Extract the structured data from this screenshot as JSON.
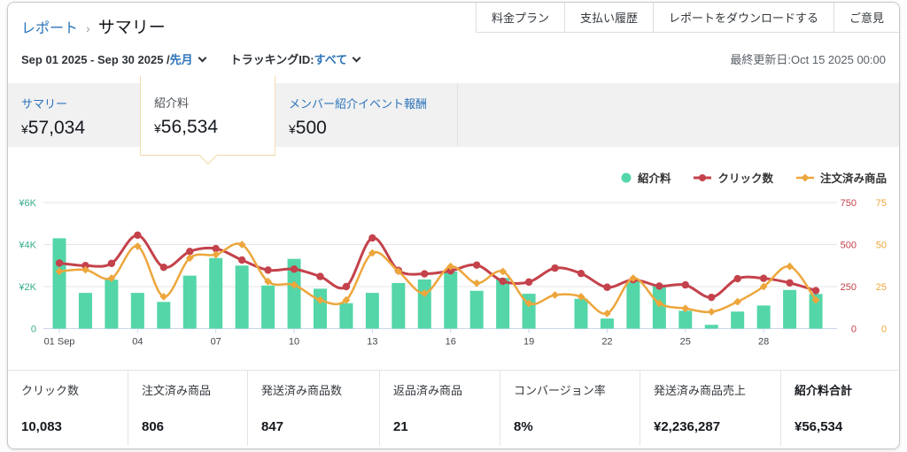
{
  "header": {
    "breadcrumb": {
      "parent": "レポート",
      "separator": "›",
      "current": "サマリー"
    },
    "actions": [
      "料金プラン",
      "支払い履歴",
      "レポートをダウンロードする",
      "ご意見"
    ],
    "date_range": "Sep 01 2025 - Sep 30 2025 /",
    "date_preset": "先月",
    "tracking_label": "トラッキングID:",
    "tracking_value": "すべて",
    "last_updated": "最終更新日:Oct 15 2025 00:00"
  },
  "icons": {
    "date_dropdown": "chevron-down",
    "tracking_dropdown": "chevron-down",
    "selected_tab_pointer": "callout-arrow-down"
  },
  "metric_tabs": [
    {
      "label": "サマリー",
      "currency": "¥",
      "value": "57,034",
      "selected": false
    },
    {
      "label": "紹介料",
      "currency": "¥",
      "value": "56,534",
      "selected": true
    },
    {
      "label": "メンバー紹介イベント報酬",
      "currency": "¥",
      "value": "500",
      "selected": false
    }
  ],
  "chart_data": {
    "type": "bar+line combo",
    "x_days": [
      1,
      2,
      3,
      4,
      5,
      6,
      7,
      8,
      9,
      10,
      11,
      12,
      13,
      14,
      15,
      16,
      17,
      18,
      19,
      20,
      21,
      22,
      23,
      24,
      25,
      26,
      27,
      28,
      29,
      30
    ],
    "x_ticks": [
      {
        "day": 1,
        "label": "01 Sep"
      },
      {
        "day": 4,
        "label": "04"
      },
      {
        "day": 7,
        "label": "07"
      },
      {
        "day": 10,
        "label": "10"
      },
      {
        "day": 13,
        "label": "13"
      },
      {
        "day": 16,
        "label": "16"
      },
      {
        "day": 19,
        "label": "19"
      },
      {
        "day": 22,
        "label": "22"
      },
      {
        "day": 25,
        "label": "25"
      },
      {
        "day": 28,
        "label": "28"
      }
    ],
    "left_axis": {
      "ticks": [
        {
          "v": 6000,
          "label": "¥6K"
        },
        {
          "v": 4000,
          "label": "¥4K"
        },
        {
          "v": 2000,
          "label": "¥2K"
        },
        {
          "v": 0,
          "label": "0"
        }
      ],
      "max": 6000,
      "color": "#35ab8c"
    },
    "right_axis1": {
      "ticks": [
        {
          "v": 750,
          "label": "750"
        },
        {
          "v": 500,
          "label": "500"
        },
        {
          "v": 250,
          "label": "250"
        },
        {
          "v": 0,
          "label": "0"
        }
      ],
      "max": 750,
      "color": "#c4424b"
    },
    "right_axis2": {
      "ticks": [
        {
          "v": 75,
          "label": "75"
        },
        {
          "v": 50,
          "label": "50"
        },
        {
          "v": 25,
          "label": "25"
        },
        {
          "v": 0,
          "label": "0"
        }
      ],
      "max": 75,
      "color": "#eda63c"
    },
    "grid": true,
    "legend_position": "top-right",
    "series": [
      {
        "name": "紹介料",
        "type": "bar",
        "axis": "left",
        "color": "#54d6a8",
        "marker": "circle",
        "values": [
          4300,
          1700,
          2330,
          1700,
          1270,
          2520,
          3360,
          3000,
          2050,
          3320,
          1900,
          1210,
          1700,
          2170,
          2340,
          2720,
          1800,
          2410,
          1660,
          0,
          1420,
          480,
          2300,
          2050,
          850,
          180,
          810,
          1100,
          1840,
          1650
        ]
      },
      {
        "name": "クリック数",
        "type": "line",
        "axis": "right1",
        "color": "#c4424b",
        "marker": "circle",
        "values": [
          390,
          375,
          388,
          556,
          365,
          459,
          476,
          408,
          348,
          354,
          310,
          250,
          539,
          346,
          326,
          344,
          378,
          282,
          277,
          360,
          328,
          246,
          291,
          253,
          260,
          186,
          297,
          299,
          272,
          226
        ]
      },
      {
        "name": "注文済み商品",
        "type": "line",
        "axis": "right2",
        "color": "#eda63c",
        "marker": "diamond",
        "values": [
          34,
          35,
          30,
          49,
          19,
          42,
          44,
          50,
          28,
          26,
          17,
          17,
          45,
          34,
          21,
          37,
          27,
          34,
          15,
          20,
          19,
          9,
          30,
          15,
          12,
          10,
          16,
          25,
          37,
          17
        ]
      }
    ]
  },
  "stats": [
    {
      "label": "クリック数",
      "value": "10,083"
    },
    {
      "label": "注文済み商品",
      "value": "806"
    },
    {
      "label": "発送済み商品数",
      "value": "847"
    },
    {
      "label": "返品済み商品",
      "value": "21"
    },
    {
      "label": "コンバージョン率",
      "value": "8%"
    },
    {
      "label": "発送済み商品売上",
      "value": "¥2,236,287"
    },
    {
      "label": "紹介料合計",
      "value": "¥56,534"
    }
  ],
  "colors": {
    "link_blue": "#2c74b8",
    "bar_green": "#54d6a8",
    "line_red": "#c4424b",
    "line_orange": "#eda63c",
    "axis_left_green": "#35ab8c",
    "strip_gray": "#f1f1f2",
    "selected_tab_border": "#f0d7a6",
    "baseline_blue": "#ccd6eb",
    "gridline": "#e6e6e6"
  }
}
